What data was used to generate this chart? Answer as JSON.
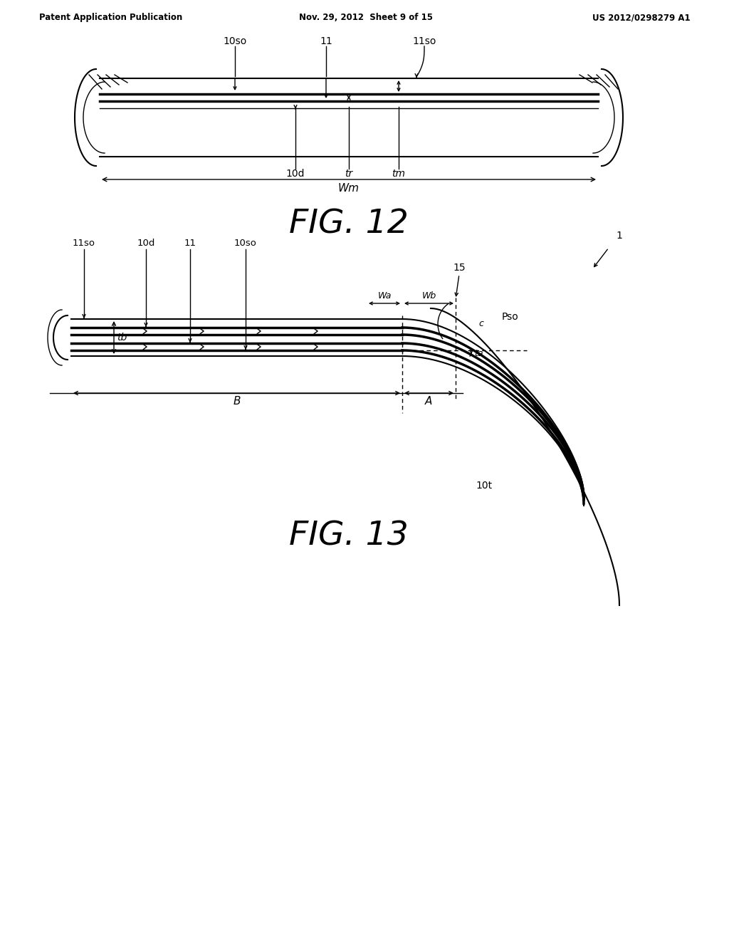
{
  "bg_color": "#ffffff",
  "header_left": "Patent Application Publication",
  "header_center": "Nov. 29, 2012  Sheet 9 of 15",
  "header_right": "US 2012/0298279 A1",
  "fig12_label": "FIG. 12",
  "fig13_label": "FIG. 13",
  "line_color": "#000000",
  "lw_thin": 1.0,
  "lw_med": 1.5,
  "lw_thick": 2.5,
  "lw_outer": 2.0
}
